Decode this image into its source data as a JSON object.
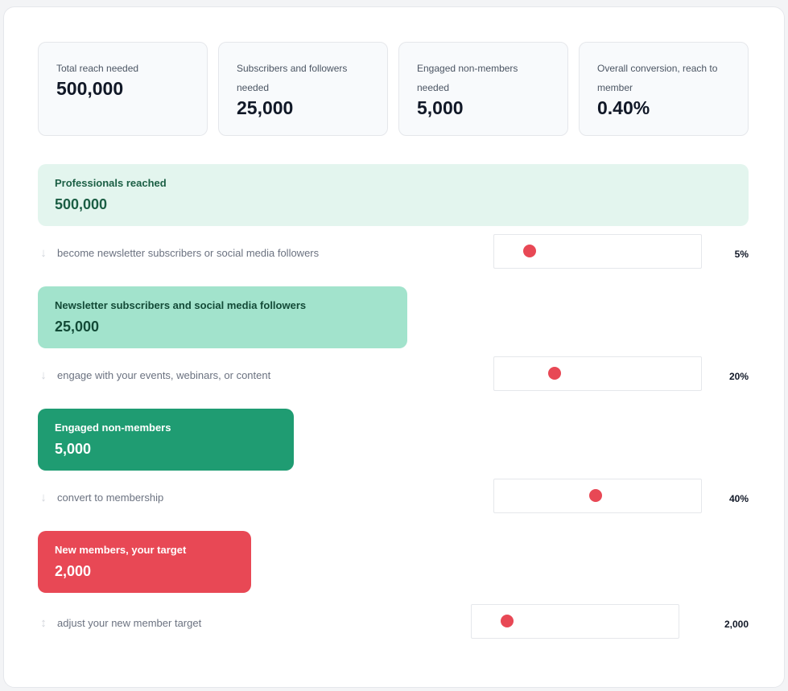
{
  "stats": [
    {
      "label": "Total reach needed",
      "value": "500,000"
    },
    {
      "label": "Subscribers and followers needed",
      "value": "25,000"
    },
    {
      "label": "Engaged non-members needed",
      "value": "5,000"
    },
    {
      "label": "Overall conversion, reach to member",
      "value": "0.40%"
    }
  ],
  "stages": [
    {
      "label": "Professionals reached",
      "value": "500,000"
    },
    {
      "label": "Newsletter subscribers and social media followers",
      "value": "25,000"
    },
    {
      "label": "Engaged non-members",
      "value": "5,000"
    },
    {
      "label": "New members, your target",
      "value": "2,000"
    }
  ],
  "rates": [
    {
      "arrow": "↓",
      "text": "become newsletter subscribers or social media followers",
      "value": "5%",
      "level": 0.17
    },
    {
      "arrow": "↓",
      "text": "engage with your events, webinars, or content",
      "value": "20%",
      "level": 0.29
    },
    {
      "arrow": "↓",
      "text": "convert to membership",
      "value": "40%",
      "level": 0.49
    },
    {
      "arrow": "↕",
      "text": "adjust your new member target",
      "value": "2,000",
      "level": 0.17
    }
  ],
  "colors": {
    "stage1_bg": "#e3f5ee",
    "stage1_text": "#1b5e44",
    "stage2_bg": "#a2e3cc",
    "stage2_text": "#134a37",
    "stage3_bg": "#1f9c72",
    "stage3_text": "#ffffff",
    "stage4_bg": "#e84855",
    "stage4_text": "#ffffff",
    "thumb": "#e84855"
  }
}
